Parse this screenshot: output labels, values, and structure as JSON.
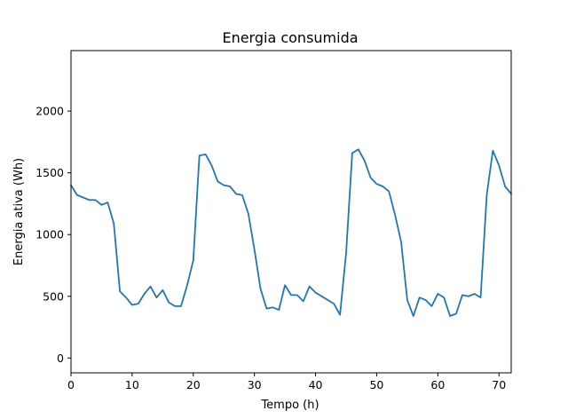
{
  "chart_data": {
    "type": "line",
    "title": "Energia consumida",
    "xlabel": "Tempo (h)",
    "ylabel": "Energia ativa (Wh)",
    "xlim": [
      0,
      72
    ],
    "ylim": [
      -120,
      2490
    ],
    "xticks": [
      0,
      10,
      20,
      30,
      40,
      50,
      60,
      70
    ],
    "yticks": [
      0,
      500,
      1000,
      1500,
      2000
    ],
    "grid": false,
    "line_color": "#1f77b4",
    "series": [
      {
        "x": [
          0,
          1,
          2,
          3,
          4,
          5,
          6,
          7,
          8,
          9,
          10,
          11,
          12,
          13,
          14,
          15,
          16,
          17,
          18,
          19,
          20,
          21,
          22,
          23,
          24,
          25,
          26,
          27,
          28,
          29,
          30,
          31,
          32,
          33,
          34,
          35,
          36,
          37,
          38,
          39,
          40,
          41,
          42,
          43,
          44,
          45,
          46,
          47,
          48,
          49,
          50,
          51,
          52,
          53,
          54,
          55,
          56,
          57,
          58,
          59,
          60,
          61,
          62,
          63,
          64,
          65,
          66,
          67,
          68,
          69,
          70,
          71,
          72
        ],
        "values": [
          1400,
          1320,
          1300,
          1280,
          1280,
          1240,
          1260,
          1090,
          540,
          490,
          430,
          440,
          520,
          580,
          490,
          550,
          450,
          420,
          420,
          590,
          790,
          1640,
          1650,
          1560,
          1430,
          1400,
          1390,
          1330,
          1320,
          1170,
          880,
          560,
          400,
          410,
          390,
          590,
          510,
          510,
          460,
          580,
          530,
          500,
          470,
          440,
          350,
          850,
          1660,
          1690,
          1600,
          1460,
          1410,
          1390,
          1350,
          1160,
          940,
          470,
          340,
          490,
          470,
          420,
          520,
          490,
          340,
          360,
          510,
          500,
          520,
          490,
          1320,
          1680,
          1560,
          1390,
          1330
        ]
      }
    ]
  }
}
